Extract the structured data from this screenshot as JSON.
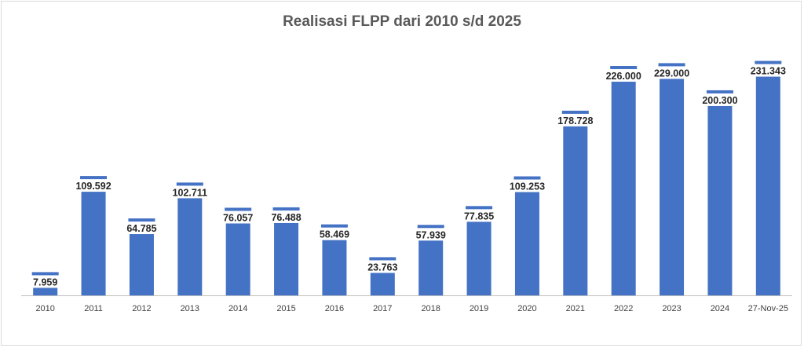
{
  "chart_data": {
    "type": "bar",
    "title": "Realisasi FLPP dari 2010 s/d 2025",
    "categories": [
      "2010",
      "2011",
      "2012",
      "2013",
      "2014",
      "2015",
      "2016",
      "2017",
      "2018",
      "2019",
      "2020",
      "2021",
      "2022",
      "2023",
      "2024",
      "27-Nov-25"
    ],
    "values": [
      7959,
      109592,
      64785,
      102711,
      76057,
      76488,
      58469,
      23763,
      57939,
      77835,
      109253,
      178728,
      226000,
      229000,
      200300,
      231343
    ],
    "data_labels": [
      "7.959",
      "109.592",
      "64.785",
      "102.711",
      "76.057",
      "76.488",
      "58.469",
      "23.763",
      "57.939",
      "77.835",
      "109.253",
      "178.728",
      "226.000",
      "229.000",
      "200.300",
      "231.343"
    ],
    "xlabel": "",
    "ylabel": "",
    "ylim": [
      0,
      260000
    ],
    "grid": false,
    "legend": "none",
    "colors": {
      "bar": "#4472C4",
      "cap": "#4472C4",
      "axis": "#bfbfbf"
    }
  }
}
